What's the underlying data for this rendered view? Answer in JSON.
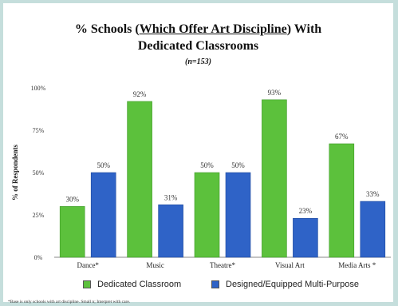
{
  "title_line1_prefix": "% Schools (",
  "title_line1_underlined": "Which Offer Art Discipline",
  "title_line1_suffix": ") With",
  "title_line2": "Dedicated Classrooms",
  "subtitle": "(n=153)",
  "footnote": "*Base is only schools with art discipline. Small n; Interpret with care.",
  "colors": {
    "dedicated": "#5cc13c",
    "designed": "#2f63c7"
  },
  "chart_data": {
    "type": "bar",
    "categories": [
      "Dance",
      "Music",
      "Theatre",
      "Visual Art",
      "Media Arts"
    ],
    "category_marks": [
      "*",
      "",
      "*",
      "",
      " *"
    ],
    "series": [
      {
        "name": "Dedicated Classroom",
        "values": [
          30,
          92,
          50,
          93,
          67
        ]
      },
      {
        "name": "Designed/Equipped Multi-Purpose",
        "values": [
          50,
          31,
          50,
          23,
          33
        ]
      }
    ],
    "data_labels": [
      [
        "30%",
        "92%",
        "50%",
        "93%",
        "67%"
      ],
      [
        "50%",
        "31%",
        "50%",
        "23%",
        "33%"
      ]
    ],
    "ylabel": "% of Respondents",
    "yticks": [
      "0%",
      "25%",
      "50%",
      "75%",
      "100%"
    ],
    "ylim": [
      0,
      100
    ],
    "legend": "bottom",
    "grid": false
  }
}
